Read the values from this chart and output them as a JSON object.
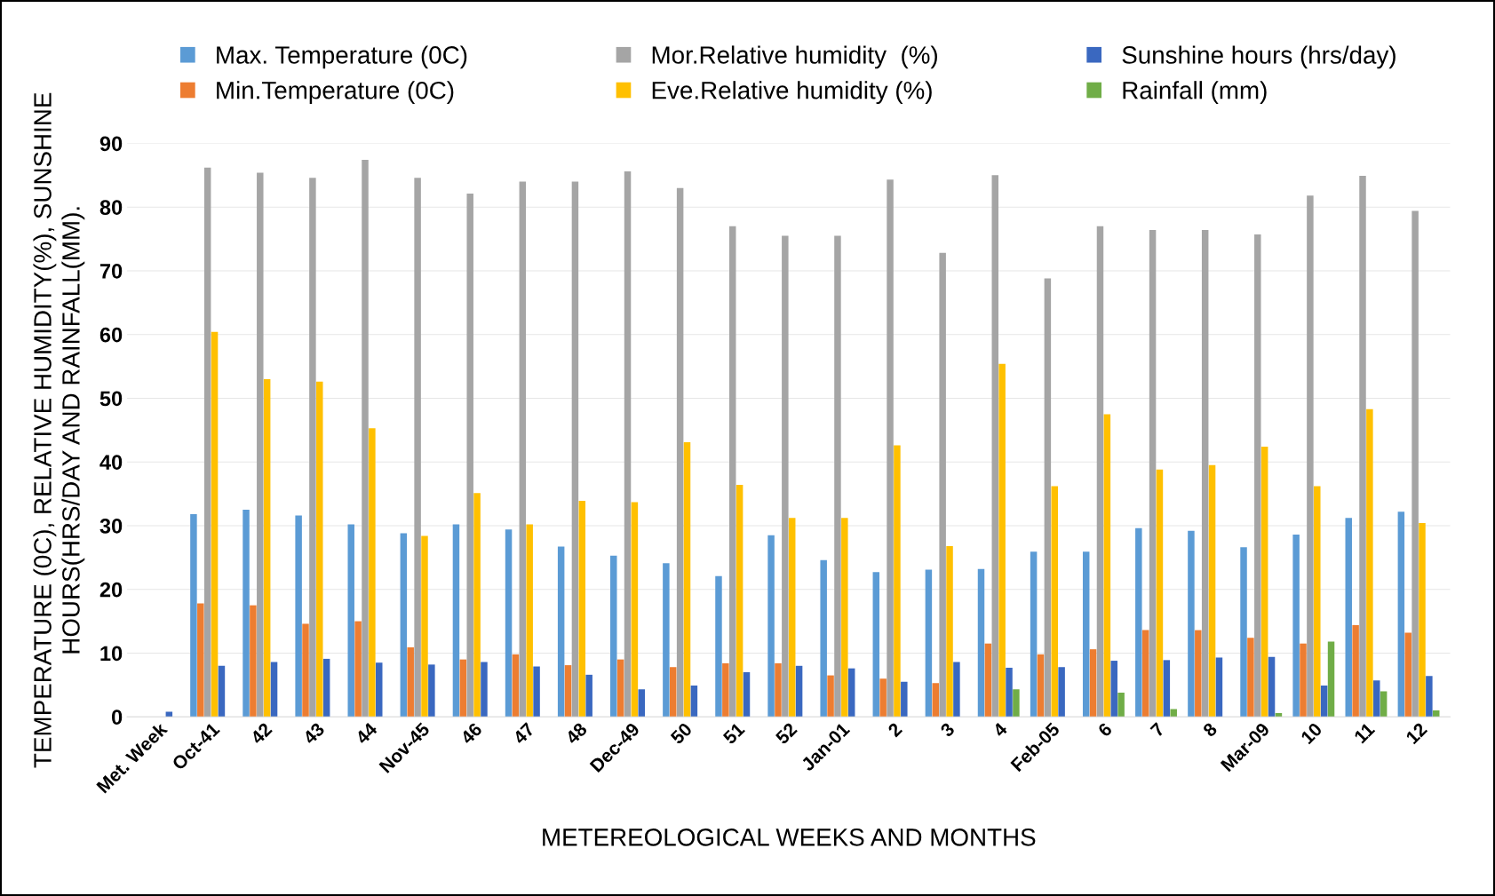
{
  "chart_data": {
    "type": "bar",
    "xlabel": "METEREOLOGICAL WEEKS AND MONTHS",
    "ylabel": "TEMPERATURE (0C), RELATIVE HUMIDITY(%), SUNSHINE\nHOURS(HRS/DAY AND RAINFALL(MM).",
    "categories": [
      "Met. Week",
      "Oct-41",
      "42",
      "43",
      "44",
      "Nov-45",
      "46",
      "47",
      "48",
      "Dec-49",
      "50",
      "51",
      "52",
      "Jan-01",
      "2",
      "3",
      "4",
      "Feb-05",
      "6",
      "7",
      "8",
      "Mar-09",
      "10",
      "11",
      "12"
    ],
    "series": [
      {
        "name": "Max. Temperature (0C)",
        "color": "#5b9bd5",
        "values": [
          0,
          31.8,
          32.5,
          31.6,
          30.2,
          28.8,
          30.2,
          29.4,
          26.7,
          25.3,
          24.1,
          22.1,
          28.5,
          24.6,
          22.7,
          23.1,
          23.2,
          25.9,
          25.9,
          29.6,
          29.2,
          26.6,
          28.6,
          31.2,
          32.2
        ]
      },
      {
        "name": "Min.Temperature (0C)",
        "color": "#ed7d31",
        "values": [
          0,
          17.8,
          17.5,
          14.6,
          15.0,
          10.9,
          9.0,
          9.8,
          8.1,
          9.0,
          7.8,
          8.4,
          8.4,
          6.5,
          6.0,
          5.3,
          11.5,
          9.8,
          10.6,
          13.6,
          13.6,
          12.4,
          11.5,
          14.4,
          13.2
        ]
      },
      {
        "name": "Mor.Relative humidity  (%)",
        "color": "#a5a5a5",
        "values": [
          0,
          86.2,
          85.4,
          84.6,
          87.4,
          84.6,
          82.1,
          84.0,
          84.0,
          85.6,
          83.0,
          77.0,
          75.5,
          75.5,
          84.3,
          72.8,
          85.0,
          68.8,
          77.0,
          76.4,
          76.4,
          75.7,
          81.8,
          84.9,
          79.4
        ]
      },
      {
        "name": "Eve.Relative humidity (%)",
        "color": "#ffc000",
        "values": [
          0,
          60.4,
          53.0,
          52.6,
          45.3,
          28.4,
          35.1,
          30.2,
          33.9,
          33.7,
          43.1,
          36.4,
          31.2,
          31.2,
          42.6,
          26.8,
          55.4,
          36.2,
          47.5,
          38.8,
          39.5,
          42.4,
          36.2,
          48.3,
          30.4
        ]
      },
      {
        "name": "Sunshine hours (hrs/day)",
        "color": "#3a68c0",
        "values": [
          0.8,
          8.0,
          8.6,
          9.1,
          8.5,
          8.2,
          8.6,
          7.9,
          6.6,
          4.3,
          4.9,
          7.0,
          8.0,
          7.6,
          5.5,
          8.6,
          7.7,
          7.8,
          8.8,
          8.9,
          9.3,
          9.4,
          4.9,
          5.7,
          6.4
        ]
      },
      {
        "name": "Rainfall (mm)",
        "color": "#70ad47",
        "values": [
          0,
          0,
          0,
          0,
          0,
          0,
          0,
          0,
          0,
          0,
          0,
          0,
          0,
          0,
          0,
          0,
          4.3,
          0,
          3.8,
          1.2,
          0,
          0.6,
          11.8,
          4.0,
          1.0
        ]
      }
    ],
    "ylim": [
      0,
      90
    ],
    "yticks": [
      0,
      10,
      20,
      30,
      40,
      50,
      60,
      70,
      80,
      90
    ],
    "grid": "y",
    "legend": "top"
  }
}
